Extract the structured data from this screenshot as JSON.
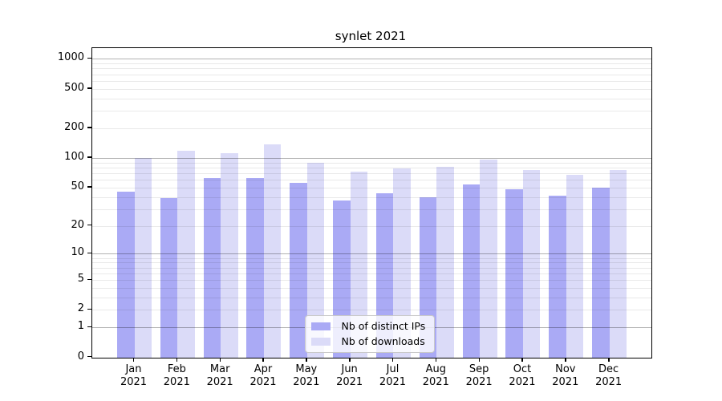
{
  "title": "synlet 2021",
  "chart_data": {
    "type": "bar",
    "title": "synlet 2021",
    "categories": [
      "Jan",
      "Feb",
      "Mar",
      "Apr",
      "May",
      "Jun",
      "Jul",
      "Aug",
      "Sep",
      "Oct",
      "Nov",
      "Dec"
    ],
    "category_year": "2021",
    "series": [
      {
        "name": "Nb of distinct IPs",
        "color": "#aaaaf5",
        "values": [
          45,
          39,
          62,
          62,
          56,
          37,
          44,
          40,
          54,
          48,
          41,
          50
        ]
      },
      {
        "name": "Nb of downloads",
        "color": "#dbdbf8",
        "values": [
          100,
          118,
          112,
          137,
          90,
          73,
          78,
          82,
          97,
          75,
          67,
          76
        ]
      }
    ],
    "xlabel": "",
    "ylabel": "",
    "y_scale": "log1p",
    "y_ticks": [
      0,
      1,
      2,
      5,
      10,
      20,
      50,
      100,
      200,
      500,
      1000
    ],
    "ylim": [
      0,
      1300
    ],
    "grid": "horizontal",
    "legend_position": "lower-center",
    "colors": {
      "background": "#ffffff",
      "axis": "#000000",
      "major_gridline": "#b3b3b3",
      "minor_gridline": "#e9e9e9"
    }
  }
}
